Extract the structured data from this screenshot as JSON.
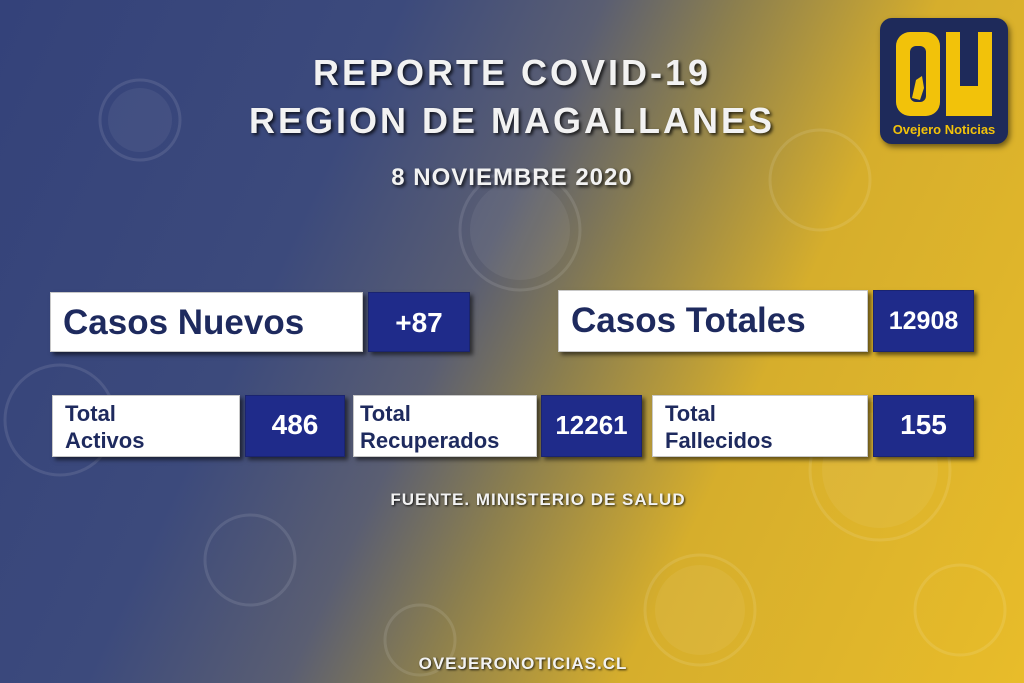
{
  "header": {
    "title_line1": "REPORTE COVID-19",
    "title_line2": "REGION DE MAGALLANES",
    "date": "8 NOVIEMBRE 2020"
  },
  "logo": {
    "mark": "ON",
    "name": "Ovejero Noticias"
  },
  "stats": {
    "casos_nuevos": {
      "label": "Casos Nuevos",
      "value": "+87"
    },
    "casos_totales": {
      "label": "Casos Totales",
      "value": "12908"
    },
    "activos": {
      "label_line1": "Total",
      "label_line2": "Activos",
      "value": "486"
    },
    "recuperados": {
      "label_line1": "Total",
      "label_line2": "Recuperados",
      "value": "12261"
    },
    "fallecidos": {
      "label_line1": "Total",
      "label_line2": "Fallecidos",
      "value": "155"
    }
  },
  "footer": {
    "source": "FUENTE. MINISTERIO DE SALUD",
    "website": "OVEJERONOTICIAS.CL"
  },
  "colors": {
    "background_left": "#34427a",
    "background_right": "#e8bc2a",
    "value_box": "#1f2b8a",
    "label_box": "#ffffff",
    "logo_yellow": "#f2c20a"
  }
}
